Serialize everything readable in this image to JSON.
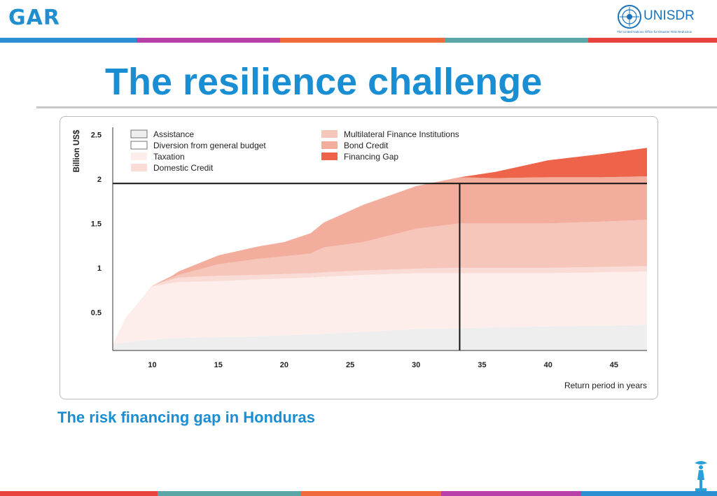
{
  "header": {
    "left_logo_text": "GAR",
    "right_logo_name": "UNISDR",
    "right_logo_tagline": "The United Nations Office for Disaster Risk Reduction",
    "top_bar_colors": [
      "#2c8fd2",
      "#b840a8",
      "#ef6a3a",
      "#5aa6a6",
      "#e8423f"
    ],
    "bottom_bar_colors": [
      "#e8423f",
      "#5aa6a6",
      "#ef6a3a",
      "#b840a8",
      "#2c8fd2"
    ]
  },
  "slide": {
    "title": "The resilience challenge",
    "caption": "The risk financing gap in Honduras"
  },
  "chart_data": {
    "type": "area",
    "stacked": true,
    "ylabel": "Billion US$",
    "xlabel": "Return period in years",
    "x_ticks": [
      10,
      15,
      20,
      25,
      30,
      35,
      40,
      45
    ],
    "y_ticks": [
      "0.5",
      "1",
      "1.5",
      "2",
      "2.5"
    ],
    "xlim": [
      7,
      47.5
    ],
    "ylim": [
      0.07,
      2.55
    ],
    "x": [
      7,
      8,
      9,
      10,
      11.5,
      12,
      15,
      18,
      20,
      22,
      23,
      26,
      30,
      33.3,
      36,
      40,
      44,
      47.5
    ],
    "series": [
      {
        "name": "Assistance",
        "color": "#eeeeee",
        "values": [
          0.07,
          0.09,
          0.11,
          0.12,
          0.14,
          0.14,
          0.15,
          0.16,
          0.17,
          0.18,
          0.19,
          0.21,
          0.24,
          0.25,
          0.26,
          0.27,
          0.28,
          0.29
        ]
      },
      {
        "name": "Diversion from general budget",
        "color": "#ffffff",
        "values": [
          0.0,
          0.0,
          0.0,
          0.0,
          0.0,
          0.0,
          0.0,
          0.0,
          0.0,
          0.0,
          0.0,
          0.0,
          0.0,
          0.0,
          0.0,
          0.0,
          0.0,
          0.0
        ]
      },
      {
        "name": "Taxation",
        "color": "#fdeeec",
        "values": [
          0.0,
          0.28,
          0.44,
          0.6,
          0.62,
          0.63,
          0.63,
          0.64,
          0.64,
          0.64,
          0.64,
          0.64,
          0.63,
          0.62,
          0.61,
          0.6,
          0.6,
          0.6
        ]
      },
      {
        "name": "Domestic Credit",
        "color": "#fadcd6",
        "values": [
          0.0,
          0.0,
          0.0,
          0.01,
          0.04,
          0.05,
          0.06,
          0.05,
          0.05,
          0.05,
          0.05,
          0.05,
          0.05,
          0.06,
          0.06,
          0.06,
          0.06,
          0.06
        ]
      },
      {
        "name": "Multilateral Finance Institutions",
        "color": "#f6c6bb",
        "values": [
          0.0,
          0.0,
          0.0,
          0.0,
          0.02,
          0.03,
          0.13,
          0.18,
          0.2,
          0.22,
          0.28,
          0.32,
          0.45,
          0.5,
          0.5,
          0.5,
          0.51,
          0.52
        ]
      },
      {
        "name": "Bond Credit",
        "color": "#f2ad9d",
        "values": [
          0.0,
          0.0,
          0.0,
          0.0,
          0.02,
          0.04,
          0.1,
          0.14,
          0.16,
          0.23,
          0.28,
          0.42,
          0.48,
          0.52,
          0.51,
          0.52,
          0.5,
          0.49
        ]
      },
      {
        "name": "Financing Gap",
        "color": "#ee644a",
        "values": [
          0.0,
          0.0,
          0.0,
          0.0,
          0.0,
          0.0,
          0.0,
          0.0,
          0.0,
          0.0,
          0.0,
          0.0,
          0.0,
          0.0,
          0.07,
          0.19,
          0.26,
          0.32
        ]
      }
    ],
    "threshold": {
      "y": 1.95,
      "x": 33.3
    }
  }
}
